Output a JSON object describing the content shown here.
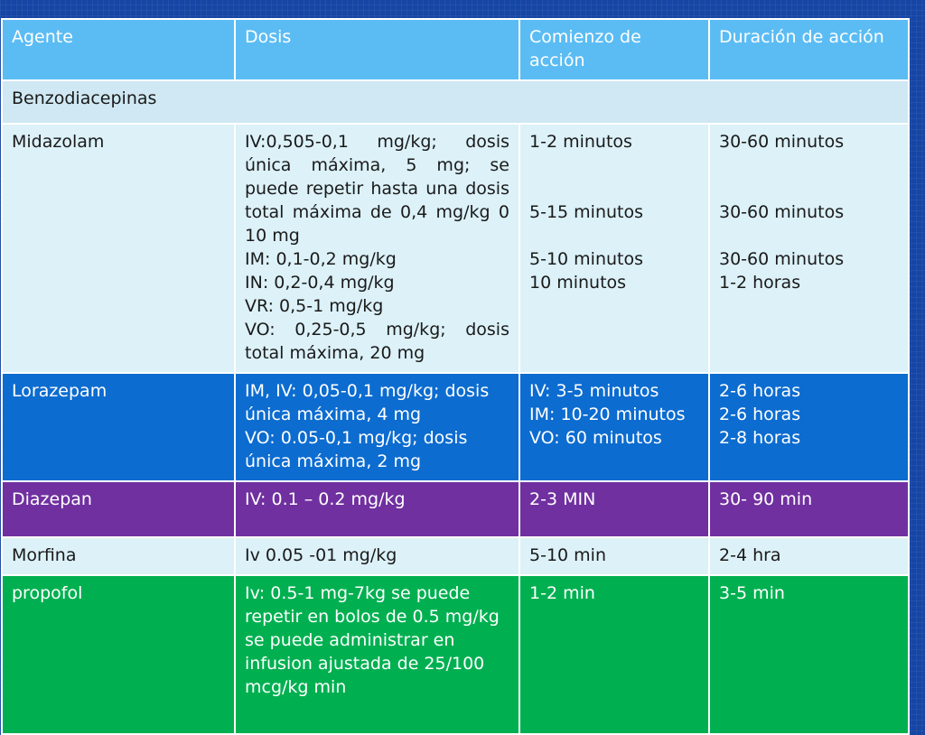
{
  "headers": [
    "Agente",
    "Dosis",
    "Comienzo de acción",
    "Duración de acción"
  ],
  "section_title": "Benzodiacepinas",
  "rows": [
    {
      "agent": "Midazolam",
      "dose_main": "IV:0,505-0,1 mg/kg; dosis única máxima, 5 mg; se puede repetir hasta una dosis total máxima de 0,4 mg/kg 0 10 mg",
      "dose_lines": [
        "IM: 0,1-0,2 mg/kg",
        "IN: 0,2-0,4 mg/kg",
        "VR: 0,5-1 mg/kg"
      ],
      "dose_last": "VO: 0,25-0,5 mg/kg; dosis total máxima, 20 mg",
      "onset": [
        "1-2 minutos",
        "5-15 minutos",
        "5-10 minutos",
        "10 minutos"
      ],
      "duration": [
        "30-60 minutos",
        "30-60 minutos",
        "30-60 minutos",
        "1-2 horas"
      ]
    },
    {
      "agent": "Lorazepam",
      "dose": [
        "IM, IV: 0,05-0,1 mg/kg; dosis única máxima, 4 mg",
        "VO: 0.05-0,1 mg/kg; dosis única máxima, 2 mg"
      ],
      "onset": [
        "IV: 3-5 minutos",
        "IM: 10-20 minutos",
        "VO: 60 minutos"
      ],
      "duration": [
        "2-6 horas",
        "2-6 horas",
        "2-8 horas"
      ]
    },
    {
      "agent": "Diazepan",
      "dose": "IV: 0.1 – 0.2 mg/kg",
      "onset": "2-3 MIN",
      "duration": "30- 90 min"
    },
    {
      "agent": "Morfina",
      "dose": "Iv 0.05 -01 mg/kg",
      "onset": "5-10 min",
      "duration": "2-4 hra"
    },
    {
      "agent": "propofol",
      "dose": "Iv: 0.5-1 mg-7kg se puede repetir en bolos de 0.5 mg/kg se puede administrar en infusion ajustada de 25/100 mcg/kg min",
      "onset": "1-2 min",
      "duration": "3-5 min"
    }
  ],
  "colors": {
    "background": "#1646a4",
    "header": "#5bbcf4",
    "light_row": "#dcf1f8",
    "blue_row": "#0c6cd0",
    "purple_row": "#7030a0",
    "green_row": "#00b050"
  }
}
